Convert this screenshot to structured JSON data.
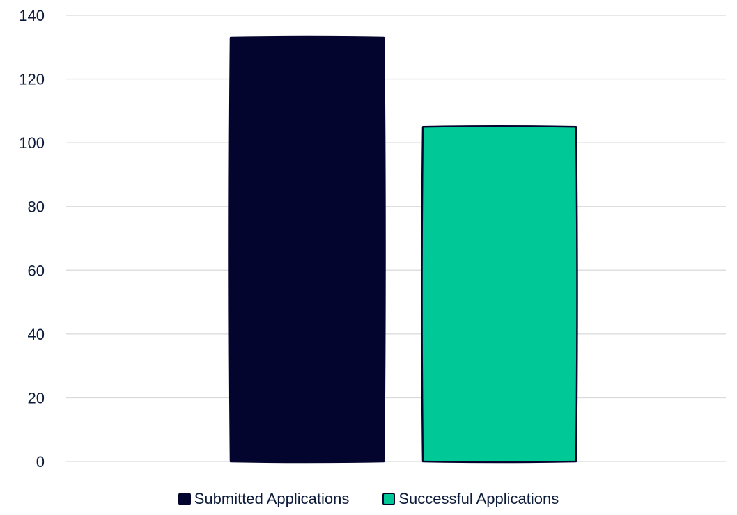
{
  "chart_data": {
    "type": "bar",
    "title": "",
    "xlabel": "",
    "ylabel": "",
    "categories": [
      ""
    ],
    "series": [
      {
        "name": "Submitted Applications",
        "values": [
          133
        ],
        "color": "#04052e"
      },
      {
        "name": "Successful Applications",
        "values": [
          105
        ],
        "color": "#00c896"
      }
    ],
    "ylim": [
      0,
      140
    ],
    "yticks": [
      "0",
      "20",
      "40",
      "60",
      "80",
      "100",
      "120",
      "140"
    ],
    "grid": true,
    "legend_position": "bottom",
    "outline_color": "#04052e"
  }
}
